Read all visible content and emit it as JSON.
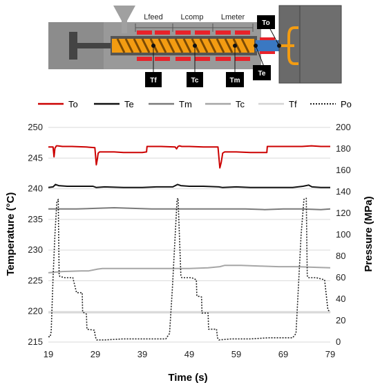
{
  "diagram": {
    "zone_labels": [
      "Lfeed",
      "Lcomp",
      "Lmeter"
    ],
    "sensor_labels": [
      "Tf",
      "Tc",
      "Tm",
      "To",
      "Te"
    ]
  },
  "legend": [
    {
      "key": "To",
      "label": "To"
    },
    {
      "key": "Te",
      "label": "Te"
    },
    {
      "key": "Tm",
      "label": "Tm"
    },
    {
      "key": "Tc",
      "label": "Tc"
    },
    {
      "key": "Tf",
      "label": "Tf"
    },
    {
      "key": "Po",
      "label": "Po"
    }
  ],
  "colors": {
    "To": "#cc0000",
    "Te": "#111111",
    "Tm": "#7a7a7a",
    "Tc": "#a6a6a6",
    "Tf": "#d4d4d4",
    "Po": "#222222",
    "gridline": "#d9d9d9",
    "barrel": "#999999",
    "screw": "#f39c12",
    "heater": "#e8222a",
    "mold": "#666666"
  },
  "chart_data": {
    "type": "line",
    "xlabel": "Time (s)",
    "ylabel": "Temperature (°C)",
    "y2label": "Pressure (MPa)",
    "xlim": [
      19,
      79
    ],
    "ylim": [
      215,
      250
    ],
    "y2lim": [
      0,
      200
    ],
    "xticks": [
      19,
      29,
      39,
      49,
      59,
      69,
      79
    ],
    "yticks": [
      215,
      220,
      225,
      230,
      235,
      240,
      245,
      250
    ],
    "y2ticks": [
      0,
      20,
      40,
      60,
      80,
      100,
      120,
      140,
      160,
      180,
      200
    ],
    "grid": "horizontal",
    "legend_position": "top",
    "series": [
      {
        "name": "To",
        "axis": "left",
        "style": "solid",
        "x": [
          19,
          20,
          20.2,
          20.4,
          20.7,
          21,
          22,
          24,
          27,
          28.9,
          29.2,
          29.4,
          29.6,
          29.9,
          30.2,
          33,
          35,
          37,
          39,
          39.9,
          40,
          43,
          46,
          46.3,
          46.6,
          46.9,
          47.4,
          49,
          52,
          55.1,
          55.5,
          55.8,
          56.1,
          56.5,
          57,
          59,
          62,
          64,
          65.5,
          65.6,
          68,
          70,
          73,
          75,
          77,
          79
        ],
        "y": [
          246.8,
          246.8,
          245.2,
          246.6,
          247.0,
          247.0,
          246.9,
          246.9,
          246.8,
          246.7,
          243.9,
          244.7,
          245.8,
          246.0,
          246.0,
          246.0,
          245.9,
          245.9,
          245.9,
          246.0,
          246.9,
          246.9,
          246.8,
          246.5,
          246.9,
          247.0,
          246.9,
          246.9,
          246.8,
          246.8,
          243.4,
          244.3,
          245.8,
          246.0,
          246.0,
          246.0,
          245.9,
          245.9,
          245.9,
          246.9,
          246.9,
          246.9,
          246.9,
          247.0,
          246.9,
          246.9
        ]
      },
      {
        "name": "Te",
        "axis": "left",
        "style": "solid",
        "x": [
          19,
          20,
          20.5,
          21.2,
          23,
          26,
          28.5,
          29.2,
          31,
          35,
          39,
          42,
          45.5,
          46.5,
          47.2,
          49,
          52,
          55.3,
          56.1,
          59,
          62,
          65,
          68,
          71,
          73.2,
          74.4,
          75.1,
          77,
          79
        ],
        "y": [
          240.2,
          240.3,
          240.7,
          240.5,
          240.4,
          240.4,
          240.4,
          240.2,
          240.3,
          240.2,
          240.2,
          240.3,
          240.3,
          240.7,
          240.5,
          240.4,
          240.4,
          240.3,
          240.2,
          240.3,
          240.2,
          240.2,
          240.2,
          240.2,
          240.4,
          240.6,
          240.3,
          240.2,
          240.2
        ]
      },
      {
        "name": "Tm",
        "axis": "left",
        "style": "solid",
        "x": [
          19,
          25,
          29,
          33,
          37,
          41,
          45,
          49,
          53,
          57,
          61,
          65,
          69,
          73,
          77,
          79
        ],
        "y": [
          236.7,
          236.7,
          236.8,
          236.9,
          236.8,
          236.7,
          236.7,
          236.7,
          236.7,
          236.7,
          236.7,
          236.6,
          236.7,
          236.7,
          236.6,
          236.7
        ]
      },
      {
        "name": "Tc",
        "axis": "left",
        "style": "solid",
        "x": [
          19,
          20.5,
          22,
          26,
          27.5,
          29.5,
          30.5,
          34,
          38,
          42,
          46,
          49,
          53,
          55.5,
          56.5,
          60,
          64,
          68,
          72,
          75,
          79
        ],
        "y": [
          226.3,
          226.4,
          226.5,
          226.6,
          226.6,
          226.9,
          227.0,
          227.0,
          227.0,
          227.0,
          227.0,
          227.0,
          227.1,
          227.3,
          227.5,
          227.5,
          227.4,
          227.3,
          227.3,
          227.2,
          227.1
        ]
      },
      {
        "name": "Tf",
        "axis": "left",
        "style": "solid",
        "x": [
          19,
          29,
          39,
          49,
          59,
          69,
          79
        ],
        "y": [
          219.8,
          219.8,
          219.8,
          219.8,
          219.8,
          219.8,
          219.8
        ]
      },
      {
        "name": "Po",
        "axis": "right",
        "style": "dotted",
        "x": [
          19,
          19.4,
          19.6,
          20.0,
          20.4,
          20.8,
          21.1,
          21.3,
          21.5,
          22.5,
          24.2,
          25.0,
          26.2,
          26.3,
          27.1,
          27.2,
          28.8,
          29.0,
          29.3,
          31,
          35,
          39,
          42,
          44,
          44.8,
          45.4,
          46.0,
          46.4,
          46.6,
          47.2,
          47.4,
          49.5,
          50.5,
          50.6,
          51.6,
          51.7,
          53.0,
          53.1,
          54.8,
          55.0,
          55.3,
          58,
          62,
          66,
          69,
          71,
          71.7,
          72.2,
          72.8,
          73.4,
          73.9,
          74.1,
          74.3,
          76,
          77.8,
          78.5,
          79
        ],
        "y": [
          5,
          5,
          10,
          60,
          100,
          130,
          133,
          62,
          61,
          60,
          60,
          46,
          46,
          28,
          26,
          12,
          11,
          5,
          2,
          2,
          3,
          3,
          3,
          3,
          8,
          50,
          100,
          133,
          134,
          62,
          60,
          60,
          58,
          43,
          42,
          27,
          27,
          12,
          12,
          4,
          2,
          3,
          3,
          4,
          4,
          4,
          8,
          50,
          100,
          133,
          134,
          62,
          60,
          60,
          58,
          30,
          28
        ]
      }
    ]
  }
}
